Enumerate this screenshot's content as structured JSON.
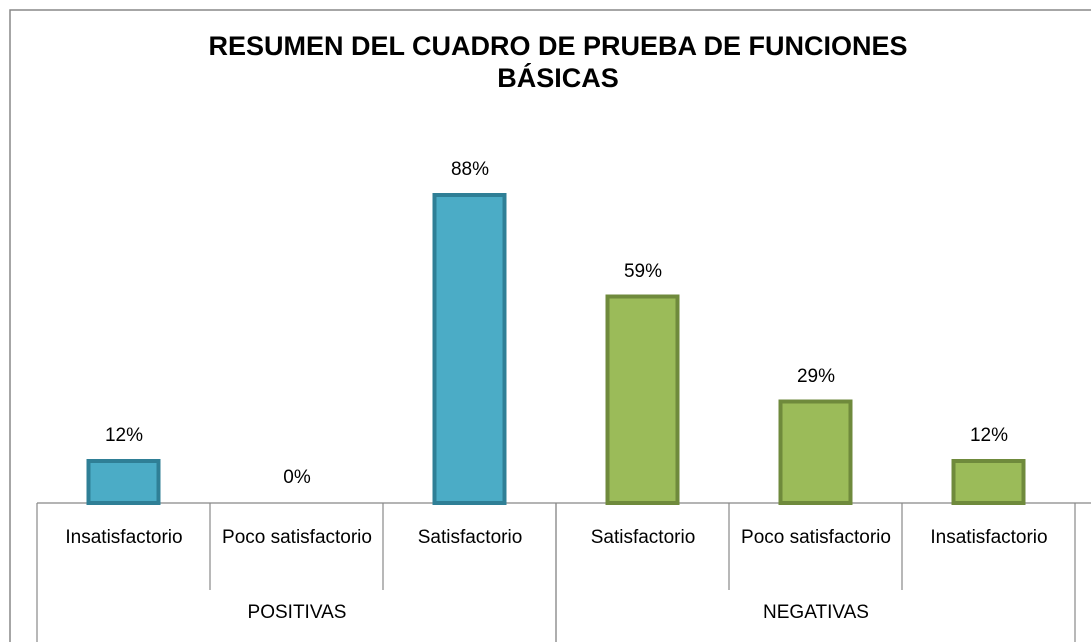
{
  "chart_data": {
    "type": "bar",
    "title": "RESUMEN DEL CUADRO DE PRUEBA DE FUNCIONES BÁSICAS",
    "series": [
      {
        "name": "POSITIVAS",
        "color": "#4bacc6",
        "edge": "#2f7f96",
        "categories": [
          "Insatisfactorio",
          "Poco satisfactorio",
          "Satisfactorio"
        ],
        "values": [
          12,
          0,
          88
        ],
        "value_labels": [
          "12%",
          "0%",
          "88%"
        ]
      },
      {
        "name": "NEGATIVAS",
        "color": "#9bbb59",
        "edge": "#6f8a3c",
        "categories": [
          "Satisfactorio",
          "Poco satisfactorio",
          "Insatisfactorio"
        ],
        "values": [
          59,
          29,
          12
        ],
        "value_labels": [
          "59%",
          "29%",
          "12%"
        ]
      }
    ]
  }
}
